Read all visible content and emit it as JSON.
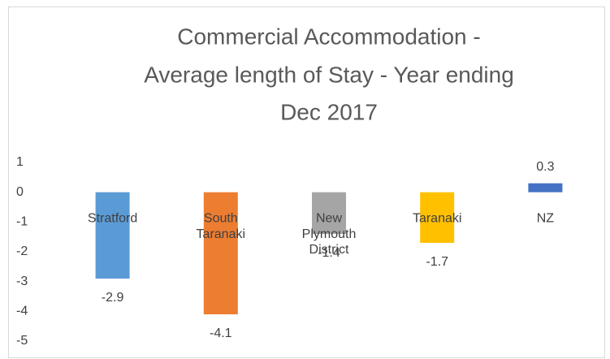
{
  "chart_data": {
    "type": "bar",
    "title": [
      "Commercial Accommodation -",
      "Average length of Stay - Year ending",
      "Dec 2017"
    ],
    "categories": [
      "Stratford",
      "South Taranaki",
      "New Plymouth District",
      "Taranaki",
      "NZ"
    ],
    "values": [
      -2.9,
      -4.1,
      -1.4,
      -1.7,
      0.3
    ],
    "colors": [
      "#5b9bd5",
      "#ed7d31",
      "#a5a5a5",
      "#ffc000",
      "#4472c4"
    ],
    "ylim": [
      -5,
      1
    ],
    "yticks": [
      1,
      0,
      -1,
      -2,
      -3,
      -4,
      -5
    ],
    "grid": false
  }
}
